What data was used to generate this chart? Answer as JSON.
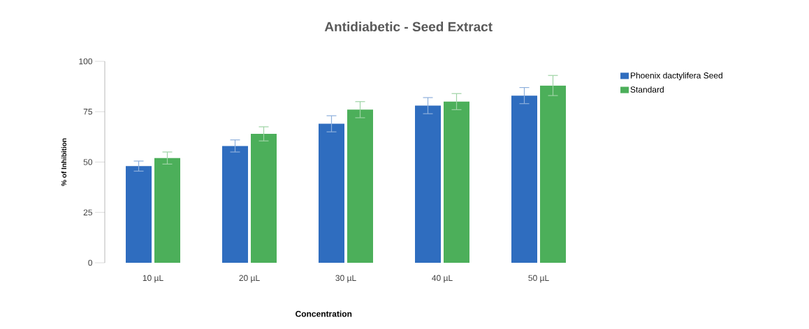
{
  "chart_data": {
    "type": "bar",
    "title": "Antidiabetic - Seed Extract",
    "xlabel": "Concentration",
    "ylabel": "% of Inhibition",
    "categories": [
      "10 µL",
      "20 µL",
      "30 µL",
      "40 µL",
      "50 µL"
    ],
    "series": [
      {
        "name": "Phoenix dactylifera Seed",
        "color": "#2f6dbf",
        "values": [
          48,
          58,
          69,
          78,
          83
        ],
        "errors": [
          2.5,
          3,
          4,
          4,
          4
        ]
      },
      {
        "name": "Standard",
        "color": "#4caf5a",
        "values": [
          52,
          64,
          76,
          80,
          88
        ],
        "errors": [
          3,
          3.5,
          4,
          4,
          5
        ]
      }
    ],
    "ylim": [
      0,
      100
    ],
    "yticks": [
      0,
      25,
      50,
      75,
      100
    ],
    "grid": false,
    "legend": "top right"
  }
}
